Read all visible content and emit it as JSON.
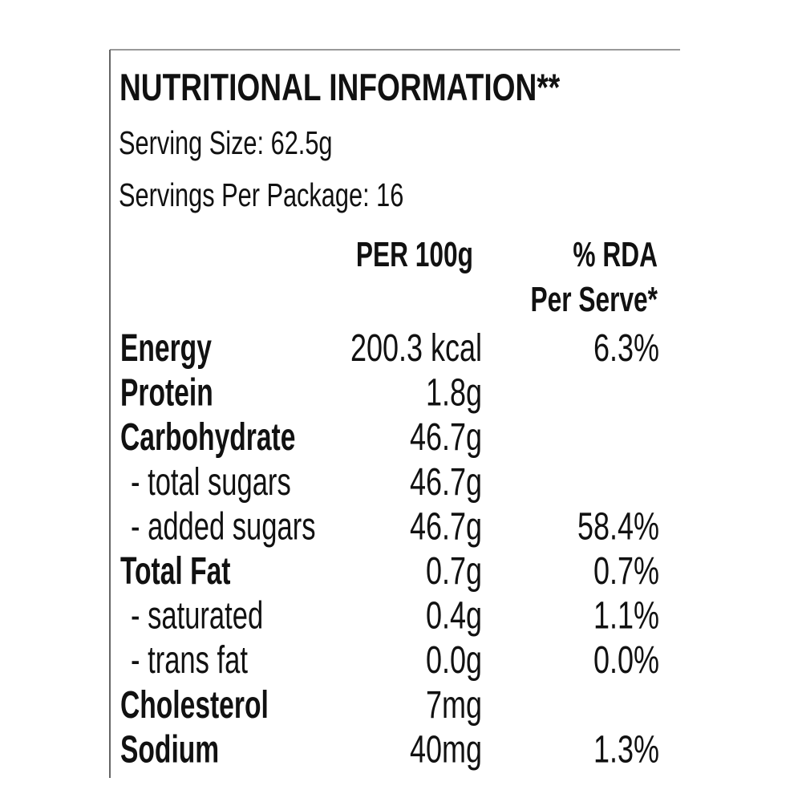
{
  "header": {
    "title": "NUTRITIONAL INFORMATION**",
    "serving_size": "Serving Size: 62.5g",
    "servings_per_package": "Servings Per Package: 16"
  },
  "table": {
    "column_headers": {
      "per_100g": "PER 100g",
      "rda_line1": "% RDA",
      "rda_line2": "Per Serve*"
    },
    "rows": [
      [
        "Energy",
        "200.3 kcal",
        "6.3%"
      ],
      [
        "Protein",
        "1.8g",
        null
      ],
      [
        "Carbohydrate",
        "46.7g",
        null
      ],
      [
        "- total sugars",
        "46.7g",
        null
      ],
      [
        "- added sugars",
        "46.7g",
        "58.4%"
      ],
      [
        "Total Fat",
        "0.7g",
        "0.7%"
      ],
      [
        "- saturated",
        "0.4g",
        "1.1%"
      ],
      [
        "- trans fat",
        "0.0g",
        "0.0%"
      ],
      [
        "Cholesterol",
        "7mg",
        null
      ],
      [
        "Sodium",
        "40mg",
        "1.3%"
      ]
    ]
  }
}
